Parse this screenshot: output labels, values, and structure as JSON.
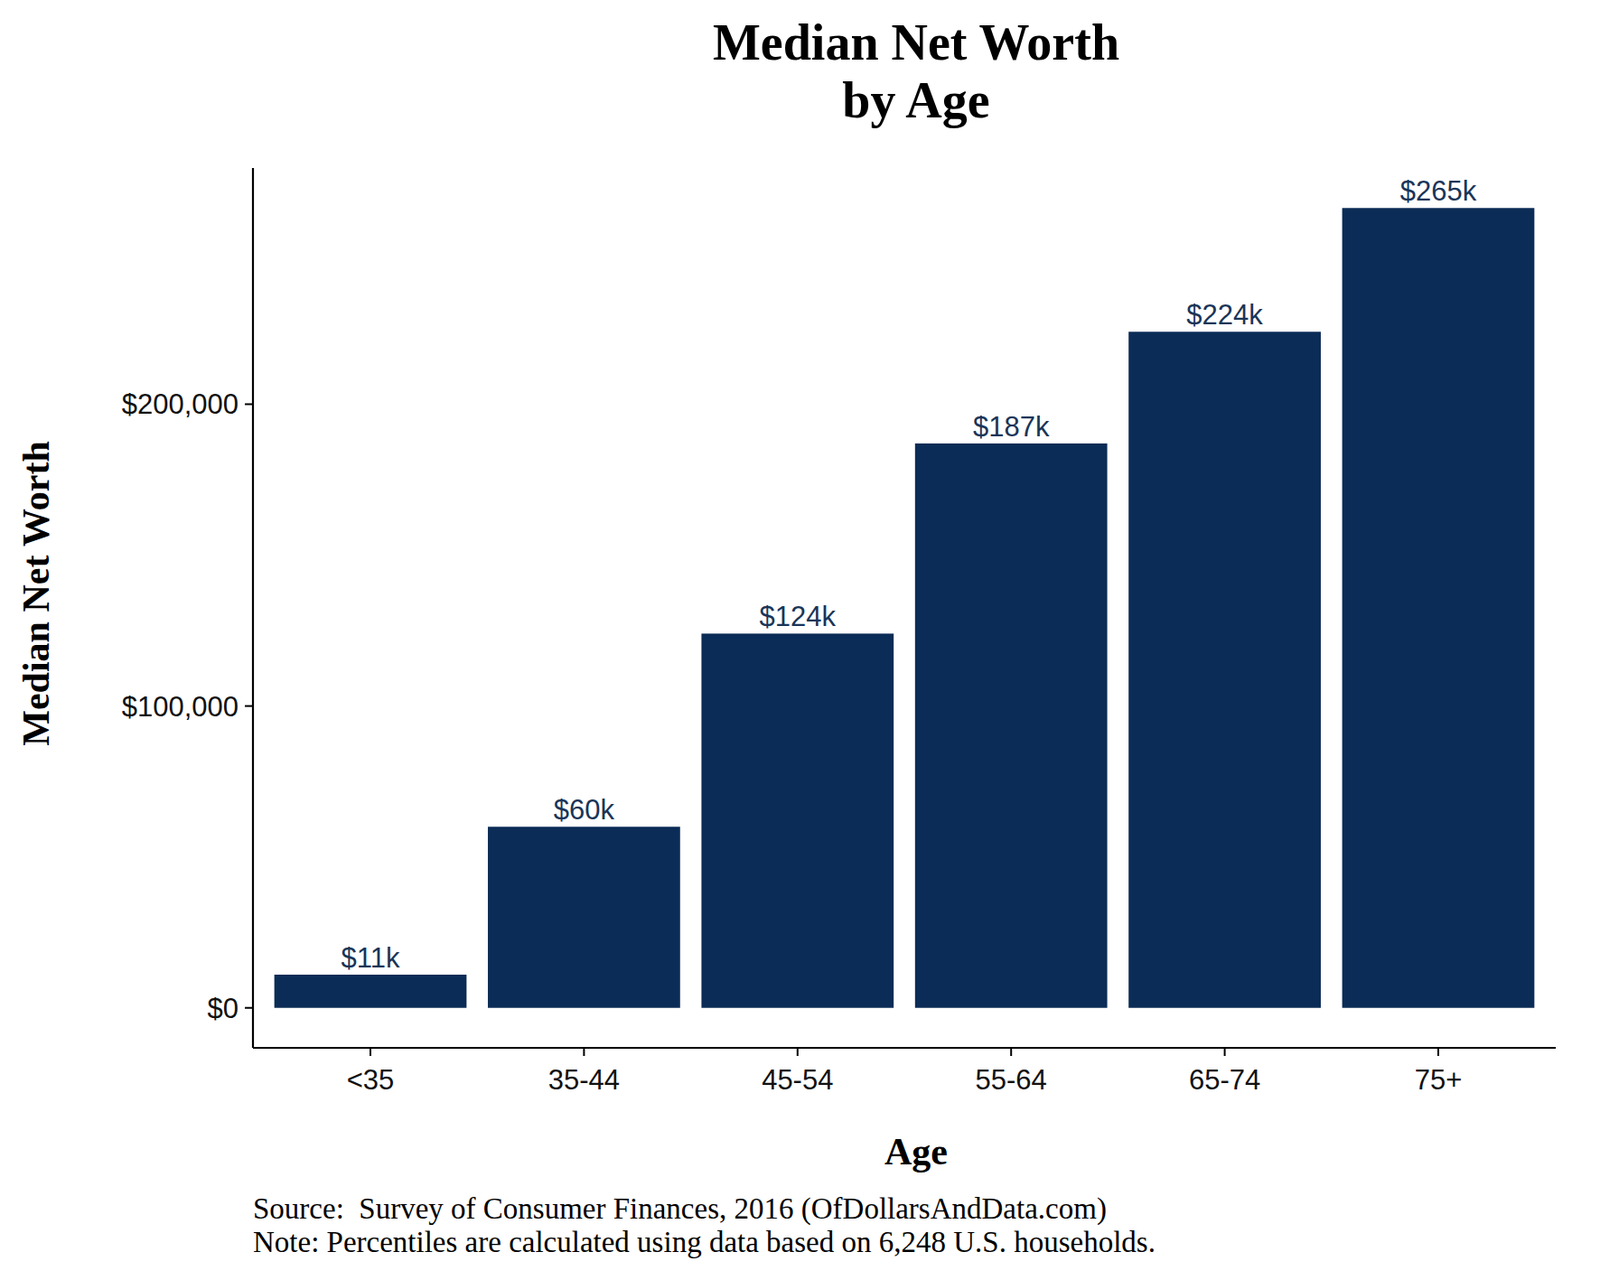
{
  "chart_data": {
    "type": "bar",
    "title": "Median Net Worth\nby Age",
    "x_label": "Age",
    "y_label": "Median Net Worth",
    "categories": [
      "<35",
      "35-44",
      "45-54",
      "55-64",
      "65-74",
      "75+"
    ],
    "values": [
      11000,
      60000,
      124000,
      187000,
      224000,
      265000
    ],
    "value_labels": [
      "$11k",
      "$60k",
      "$124k",
      "$187k",
      "$224k",
      "$265k"
    ],
    "data_labels": true,
    "color": "#0b2c56",
    "ylim": [
      -13250,
      278250
    ],
    "yticks": [
      {
        "value": 0,
        "label": "$0"
      },
      {
        "value": 100000,
        "label": "$100,000"
      },
      {
        "value": 200000,
        "label": "$200,000"
      }
    ],
    "grid": false,
    "annotations": [
      "Source:  Survey of Consumer Finances, 2016 (OfDollarsAndData.com)",
      "Note: Percentiles are calculated using data based on 6,248 U.S. households."
    ]
  }
}
